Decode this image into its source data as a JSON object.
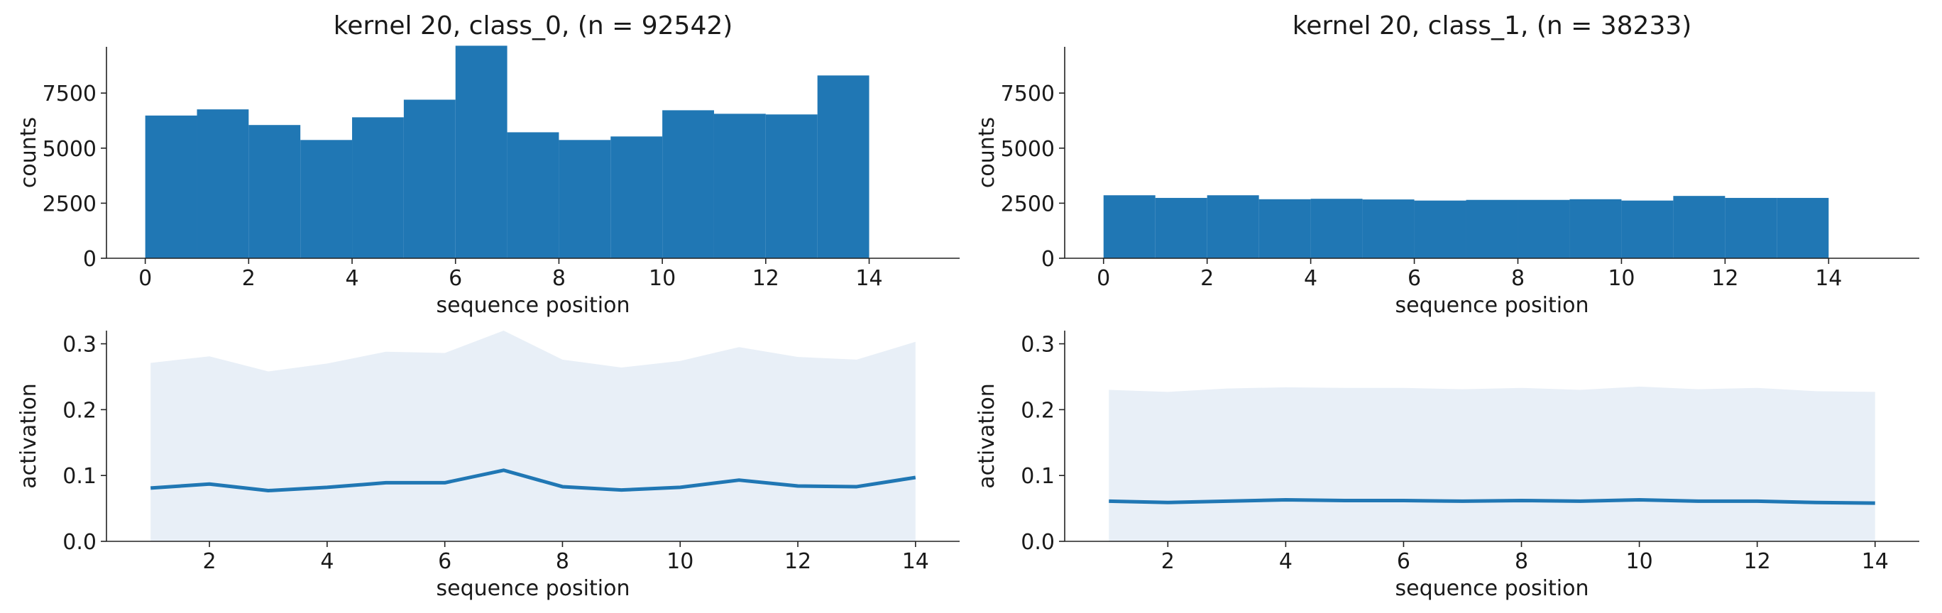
{
  "colors": {
    "bar": "#2077b4",
    "line": "#2077b4",
    "band": "#e8eff7"
  },
  "chart_data": [
    {
      "type": "bar",
      "title": "kernel 20, class_0, (n = 92542)",
      "xlabel": "sequence position",
      "ylabel": "counts",
      "xlim": [
        -0.75,
        15.75
      ],
      "ylim": [
        0,
        9600
      ],
      "xticks": [
        0,
        2,
        4,
        6,
        8,
        10,
        12,
        14
      ],
      "yticks": [
        0,
        2500,
        5000,
        7500
      ],
      "bin_edges": [
        0,
        1,
        2,
        3,
        4,
        5,
        6,
        7,
        8,
        9,
        10,
        11,
        12,
        13,
        14
      ],
      "values": [
        6480,
        6760,
        6050,
        5370,
        6400,
        7200,
        9650,
        5720,
        5370,
        5530,
        6720,
        6560,
        6530,
        8300
      ],
      "grid": false
    },
    {
      "type": "bar",
      "title": "kernel 20, class_1, (n = 38233)",
      "xlabel": "sequence position",
      "ylabel": "counts",
      "xlim": [
        -0.75,
        15.75
      ],
      "ylim": [
        0,
        9600
      ],
      "xticks": [
        0,
        2,
        4,
        6,
        8,
        10,
        12,
        14
      ],
      "yticks": [
        0,
        2500,
        5000,
        7500
      ],
      "bin_edges": [
        0,
        1,
        2,
        3,
        4,
        5,
        6,
        7,
        8,
        9,
        10,
        11,
        12,
        13,
        14
      ],
      "values": [
        2860,
        2740,
        2860,
        2680,
        2700,
        2670,
        2620,
        2650,
        2650,
        2680,
        2620,
        2830,
        2740,
        2740
      ],
      "grid": false
    },
    {
      "type": "line",
      "xlabel": "sequence position",
      "ylabel": "activation",
      "xlim": [
        0.25,
        14.75
      ],
      "ylim": [
        0,
        0.32
      ],
      "xticks": [
        2,
        4,
        6,
        8,
        10,
        12,
        14
      ],
      "yticks": [
        0.0,
        0.1,
        0.2,
        0.3
      ],
      "x": [
        1,
        2,
        3,
        4,
        5,
        6,
        7,
        8,
        9,
        10,
        11,
        12,
        13,
        14
      ],
      "series": [
        {
          "kind": "mean",
          "values": [
            0.081,
            0.087,
            0.077,
            0.082,
            0.089,
            0.089,
            0.108,
            0.083,
            0.078,
            0.082,
            0.093,
            0.084,
            0.083,
            0.097
          ]
        },
        {
          "kind": "band_upper",
          "values": [
            0.271,
            0.281,
            0.258,
            0.27,
            0.288,
            0.286,
            0.32,
            0.276,
            0.264,
            0.274,
            0.295,
            0.28,
            0.276,
            0.303
          ]
        }
      ],
      "grid": false
    },
    {
      "type": "line",
      "xlabel": "sequence position",
      "ylabel": "activation",
      "xlim": [
        0.25,
        14.75
      ],
      "ylim": [
        0,
        0.32
      ],
      "xticks": [
        2,
        4,
        6,
        8,
        10,
        12,
        14
      ],
      "yticks": [
        0.0,
        0.1,
        0.2,
        0.3
      ],
      "x": [
        1,
        2,
        3,
        4,
        5,
        6,
        7,
        8,
        9,
        10,
        11,
        12,
        13,
        14
      ],
      "series": [
        {
          "kind": "mean",
          "values": [
            0.061,
            0.059,
            0.061,
            0.063,
            0.062,
            0.062,
            0.061,
            0.062,
            0.061,
            0.063,
            0.061,
            0.061,
            0.059,
            0.058
          ]
        },
        {
          "kind": "band_upper",
          "values": [
            0.23,
            0.227,
            0.232,
            0.234,
            0.233,
            0.233,
            0.231,
            0.233,
            0.23,
            0.235,
            0.231,
            0.233,
            0.228,
            0.227
          ]
        }
      ],
      "grid": false
    }
  ]
}
